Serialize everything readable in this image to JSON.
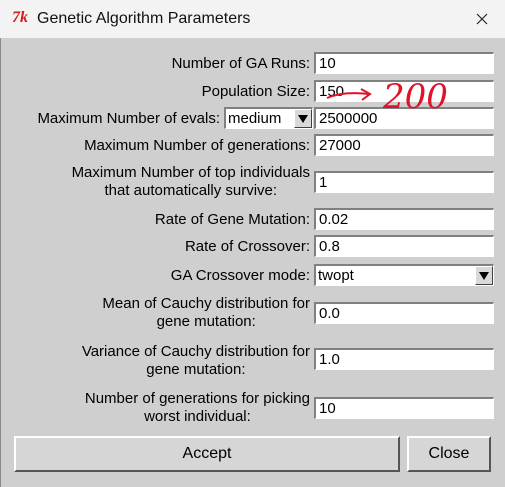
{
  "window": {
    "title": "Genetic Algorithm Parameters",
    "icon_glyph": "7k"
  },
  "fields": [
    {
      "label": "Number of GA Runs:",
      "value": "10"
    },
    {
      "label": "Population Size:",
      "value": "150"
    },
    {
      "label": "Maximum Number of evals:",
      "select_value": "medium",
      "value": "2500000"
    },
    {
      "label": "Maximum Number of generations:",
      "value": "27000"
    },
    {
      "label_lines": [
        "Maximum Number of top individuals",
        "that automatically survive:"
      ],
      "value": "1"
    },
    {
      "label": "Rate of Gene Mutation:",
      "value": "0.02"
    },
    {
      "label": "Rate of Crossover:",
      "value": "0.8"
    },
    {
      "label": "GA Crossover mode:",
      "select_value": "twopt"
    },
    {
      "label_lines": [
        "Mean of Cauchy distribution for",
        "gene mutation:"
      ],
      "value": "0.0"
    },
    {
      "label_lines": [
        "Variance of Cauchy distribution for",
        "gene mutation:"
      ],
      "value": "1.0"
    },
    {
      "label_lines": [
        "Number of generations for picking",
        "worst individual:"
      ],
      "value": "10"
    }
  ],
  "buttons": {
    "accept": "Accept",
    "close": "Close"
  },
  "annotation": {
    "text": "200",
    "color": "#e0122a"
  },
  "icons": {
    "window_icon": "tk-feather-icon",
    "close": "close-icon",
    "dropdown": "dropdown-arrow-icon"
  }
}
